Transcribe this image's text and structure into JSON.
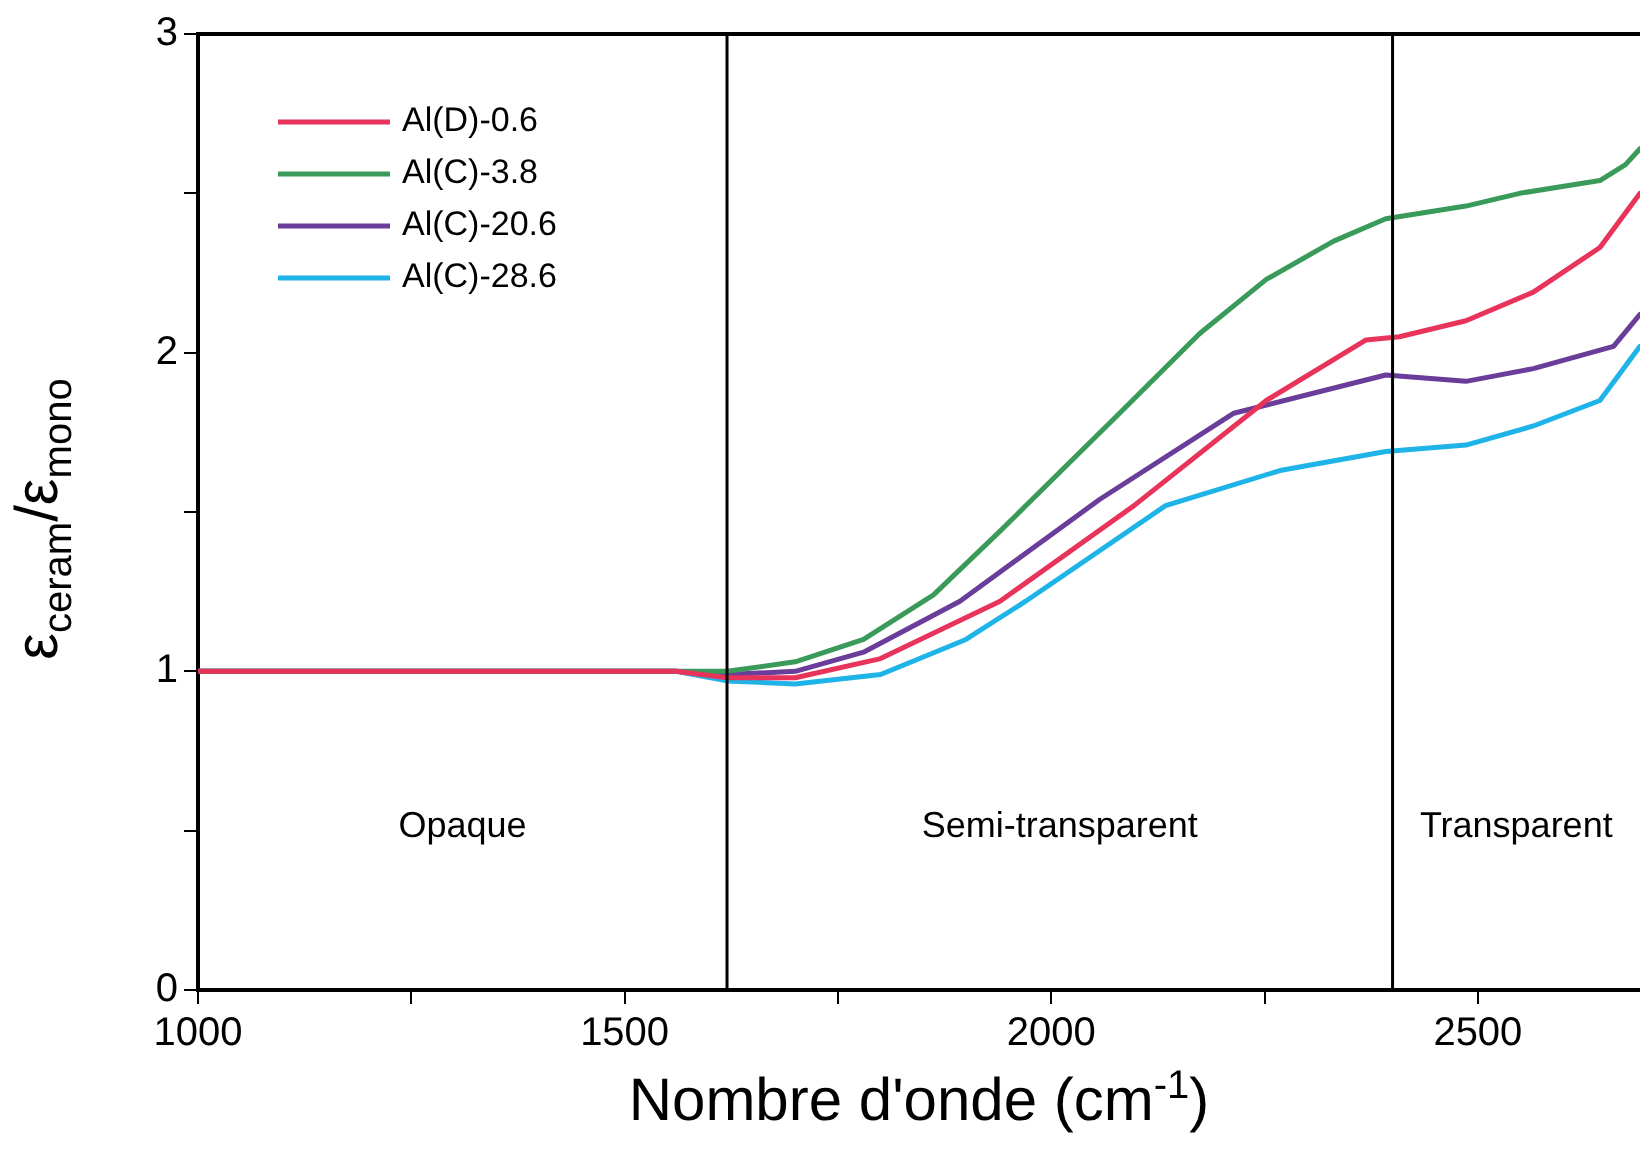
{
  "chart_data": {
    "type": "line",
    "xlabel": "Nombre d'onde (cm$^{-1}$)",
    "ylabel": "ε$_{ceram}$/ε$_{mono}$",
    "xlim": [
      1000,
      2690
    ],
    "ylim": [
      0,
      3
    ],
    "xticks": [
      1000,
      {
        "value": 1250,
        "label": null
      },
      1500,
      {
        "value": 1750,
        "label": null
      },
      2000,
      {
        "value": 2250,
        "label": null
      },
      2500
    ],
    "yticks": [
      0,
      {
        "value": 0.5,
        "label": null
      },
      1,
      {
        "value": 1.5,
        "label": null
      },
      2,
      {
        "value": 2.5,
        "label": null
      },
      3
    ],
    "grid": false,
    "legend": "top left",
    "marker": "none",
    "line_style": "solid",
    "ref_lines": [
      {
        "axis": "x",
        "value": 1620,
        "color": "#000000"
      },
      {
        "axis": "x",
        "value": 2400,
        "color": "#000000"
      }
    ],
    "annotations": [
      "Opaque",
      "Semi-transparent",
      "Transparent"
    ],
    "series": [
      {
        "name": "Al(D)-0.6",
        "color": "#e8335a",
        "x": [
          1000,
          1300,
          1560,
          1620,
          1700,
          1800,
          1940,
          2097,
          2252,
          2369,
          2408,
          2486,
          2565,
          2643,
          2690
        ],
        "values": [
          1,
          1,
          1,
          0.98,
          0.98,
          1.04,
          1.22,
          1.52,
          1.85,
          2.04,
          2.05,
          2.1,
          2.19,
          2.33,
          2.5
        ]
      },
      {
        "name": "Al(C)-3.8",
        "color": "#3a9a5a",
        "x": [
          1000,
          1300,
          1560,
          1620,
          1700,
          1780,
          1862,
          1940,
          2080,
          2174,
          2252,
          2331,
          2392,
          2486,
          2549,
          2643,
          2673,
          2690
        ],
        "values": [
          1,
          1,
          1,
          1,
          1.03,
          1.1,
          1.24,
          1.44,
          1.81,
          2.06,
          2.23,
          2.35,
          2.42,
          2.46,
          2.5,
          2.54,
          2.59,
          2.64
        ]
      },
      {
        "name": "Al(C)-20.6",
        "color": "#6a3d9a",
        "x": [
          1000,
          1300,
          1560,
          1620,
          1700,
          1780,
          1893,
          2057,
          2214,
          2392,
          2486,
          2565,
          2659,
          2690
        ],
        "values": [
          1,
          1,
          1,
          0.99,
          1,
          1.06,
          1.22,
          1.54,
          1.81,
          1.93,
          1.91,
          1.95,
          2.02,
          2.12
        ]
      },
      {
        "name": "Al(C)-28.6",
        "color": "#1fb4e8",
        "x": [
          1000,
          1300,
          1560,
          1620,
          1700,
          1800,
          1900,
          1970,
          2134,
          2268,
          2392,
          2486,
          2565,
          2643,
          2690
        ],
        "values": [
          1,
          1,
          1,
          0.97,
          0.96,
          0.99,
          1.1,
          1.22,
          1.52,
          1.63,
          1.69,
          1.71,
          1.77,
          1.85,
          2.02
        ]
      }
    ]
  }
}
